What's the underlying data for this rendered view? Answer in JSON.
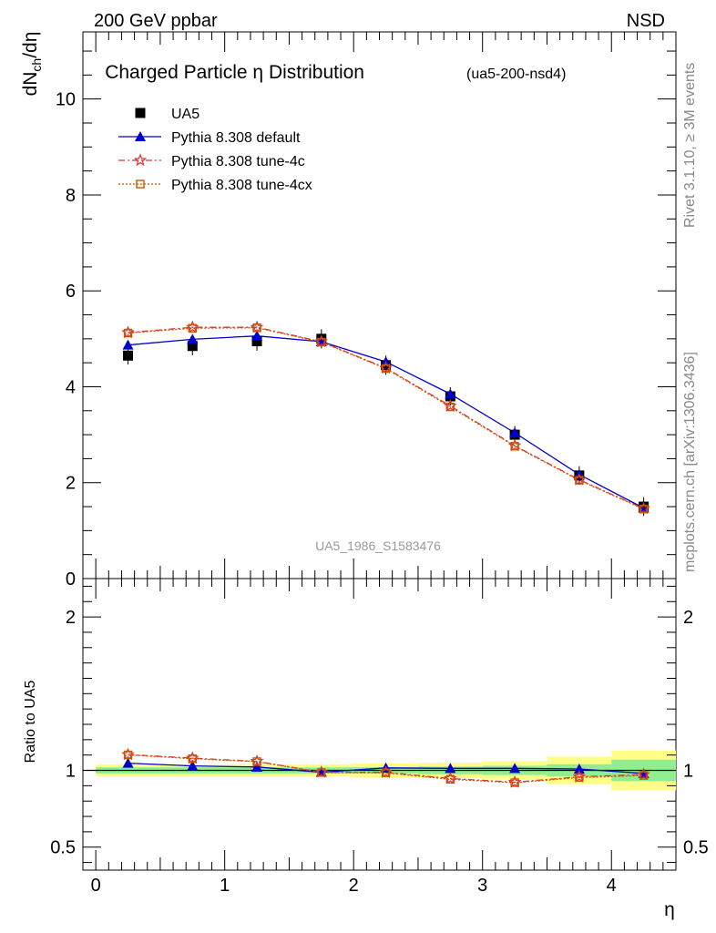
{
  "header": {
    "left": "200 GeV ppbar",
    "right": "NSD"
  },
  "side_text": {
    "top": "Rivet 3.1.10, ≥ 3M events",
    "bottom": "mcplots.cern.ch [arXiv:1306.3436]"
  },
  "chart_data": {
    "type": "line",
    "title": "Charged Particle η Distribution",
    "subtitle": "(ua5-200-nsd4)",
    "watermark": "UA5_1986_S1583476",
    "xlabel": "η",
    "ylabel": "dN_ch/dη",
    "ratio_ylabel": "Ratio to UA5",
    "xlim": [
      -0.1,
      4.5
    ],
    "ylim": [
      0,
      11.4
    ],
    "ratio_ylim": [
      0.35,
      2.25
    ],
    "x_ticks": [
      "0",
      "1",
      "2",
      "3",
      "4"
    ],
    "y_ticks": [
      "0",
      "2",
      "4",
      "6",
      "8",
      "10"
    ],
    "ratio_ticks": [
      "0.5",
      "1",
      "2"
    ],
    "x": [
      0.25,
      0.75,
      1.25,
      1.75,
      2.25,
      2.75,
      3.25,
      3.75,
      4.25
    ],
    "band_edges": [
      0.0,
      0.5,
      1.0,
      1.5,
      2.0,
      2.5,
      3.0,
      3.5,
      4.0,
      4.5
    ],
    "data_series": {
      "name": "UA5",
      "color": "#000000",
      "values": [
        4.65,
        4.85,
        4.95,
        5.0,
        4.45,
        3.8,
        3.0,
        2.15,
        1.5
      ],
      "rel_err_stat": [
        0.02,
        0.02,
        0.02,
        0.02,
        0.02,
        0.025,
        0.03,
        0.04,
        0.07
      ],
      "rel_err_tot": [
        0.04,
        0.04,
        0.04,
        0.04,
        0.045,
        0.05,
        0.06,
        0.09,
        0.13
      ]
    },
    "series": [
      {
        "name": "Pythia 8.308 default",
        "color": "#0000cc",
        "marker": "triangle",
        "dash": "",
        "values": [
          4.87,
          4.99,
          5.06,
          4.94,
          4.52,
          3.85,
          3.04,
          2.17,
          1.47
        ],
        "ratio": [
          1.047,
          1.029,
          1.022,
          0.988,
          1.016,
          1.013,
          1.013,
          1.009,
          0.98
        ]
      },
      {
        "name": "Pythia 8.308 tune-4c",
        "color": "#dd3333",
        "marker": "star",
        "dash": "7,3,2,3",
        "values": [
          5.13,
          5.24,
          5.24,
          4.94,
          4.39,
          3.6,
          2.77,
          2.06,
          1.46
        ],
        "ratio": [
          1.103,
          1.08,
          1.059,
          0.988,
          0.987,
          0.947,
          0.923,
          0.958,
          0.973
        ]
      },
      {
        "name": "Pythia 8.308 tune-4cx",
        "color": "#cc5500",
        "marker": "square-open",
        "dash": "2,2",
        "values": [
          5.12,
          5.22,
          5.23,
          4.93,
          4.38,
          3.58,
          2.76,
          2.05,
          1.45
        ],
        "ratio": [
          1.101,
          1.076,
          1.057,
          0.986,
          0.984,
          0.942,
          0.92,
          0.953,
          0.967
        ]
      }
    ],
    "legend_position": "top-left",
    "band_colors": {
      "stat": "#90ee90",
      "total": "#ffff88"
    }
  }
}
